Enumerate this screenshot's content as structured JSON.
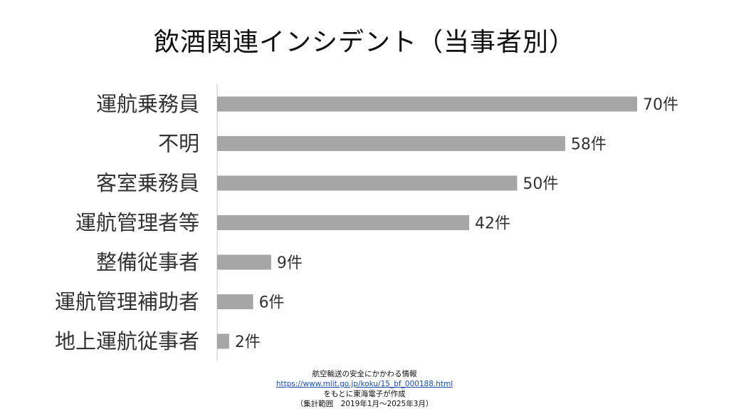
{
  "chart_data": {
    "type": "bar",
    "orientation": "horizontal",
    "title": "飲酒関連インシデント（当事者別）",
    "categories": [
      "運航乗務員",
      "不明",
      "客室乗務員",
      "運航管理者等",
      "整備従事者",
      "運航管理補助者",
      "地上運航従事者"
    ],
    "values": [
      70,
      58,
      50,
      42,
      9,
      6,
      2
    ],
    "value_labels": [
      "70件",
      "58件",
      "50件",
      "42件",
      "9件",
      "6件",
      "2件"
    ],
    "xlim": [
      0,
      70
    ],
    "bar_color": "#a6a6a6",
    "axis_color": "#d9d9d9",
    "grid": false,
    "legend": "none"
  },
  "source": {
    "line1": "航空輸送の安全にかかわる情報",
    "url": "https://www.mlit.go.jp/koku/15_bf_000188.html",
    "line3": "をもとに東海電子が作成",
    "line4": "（集計範囲　2019年1月～2025年3月）"
  }
}
